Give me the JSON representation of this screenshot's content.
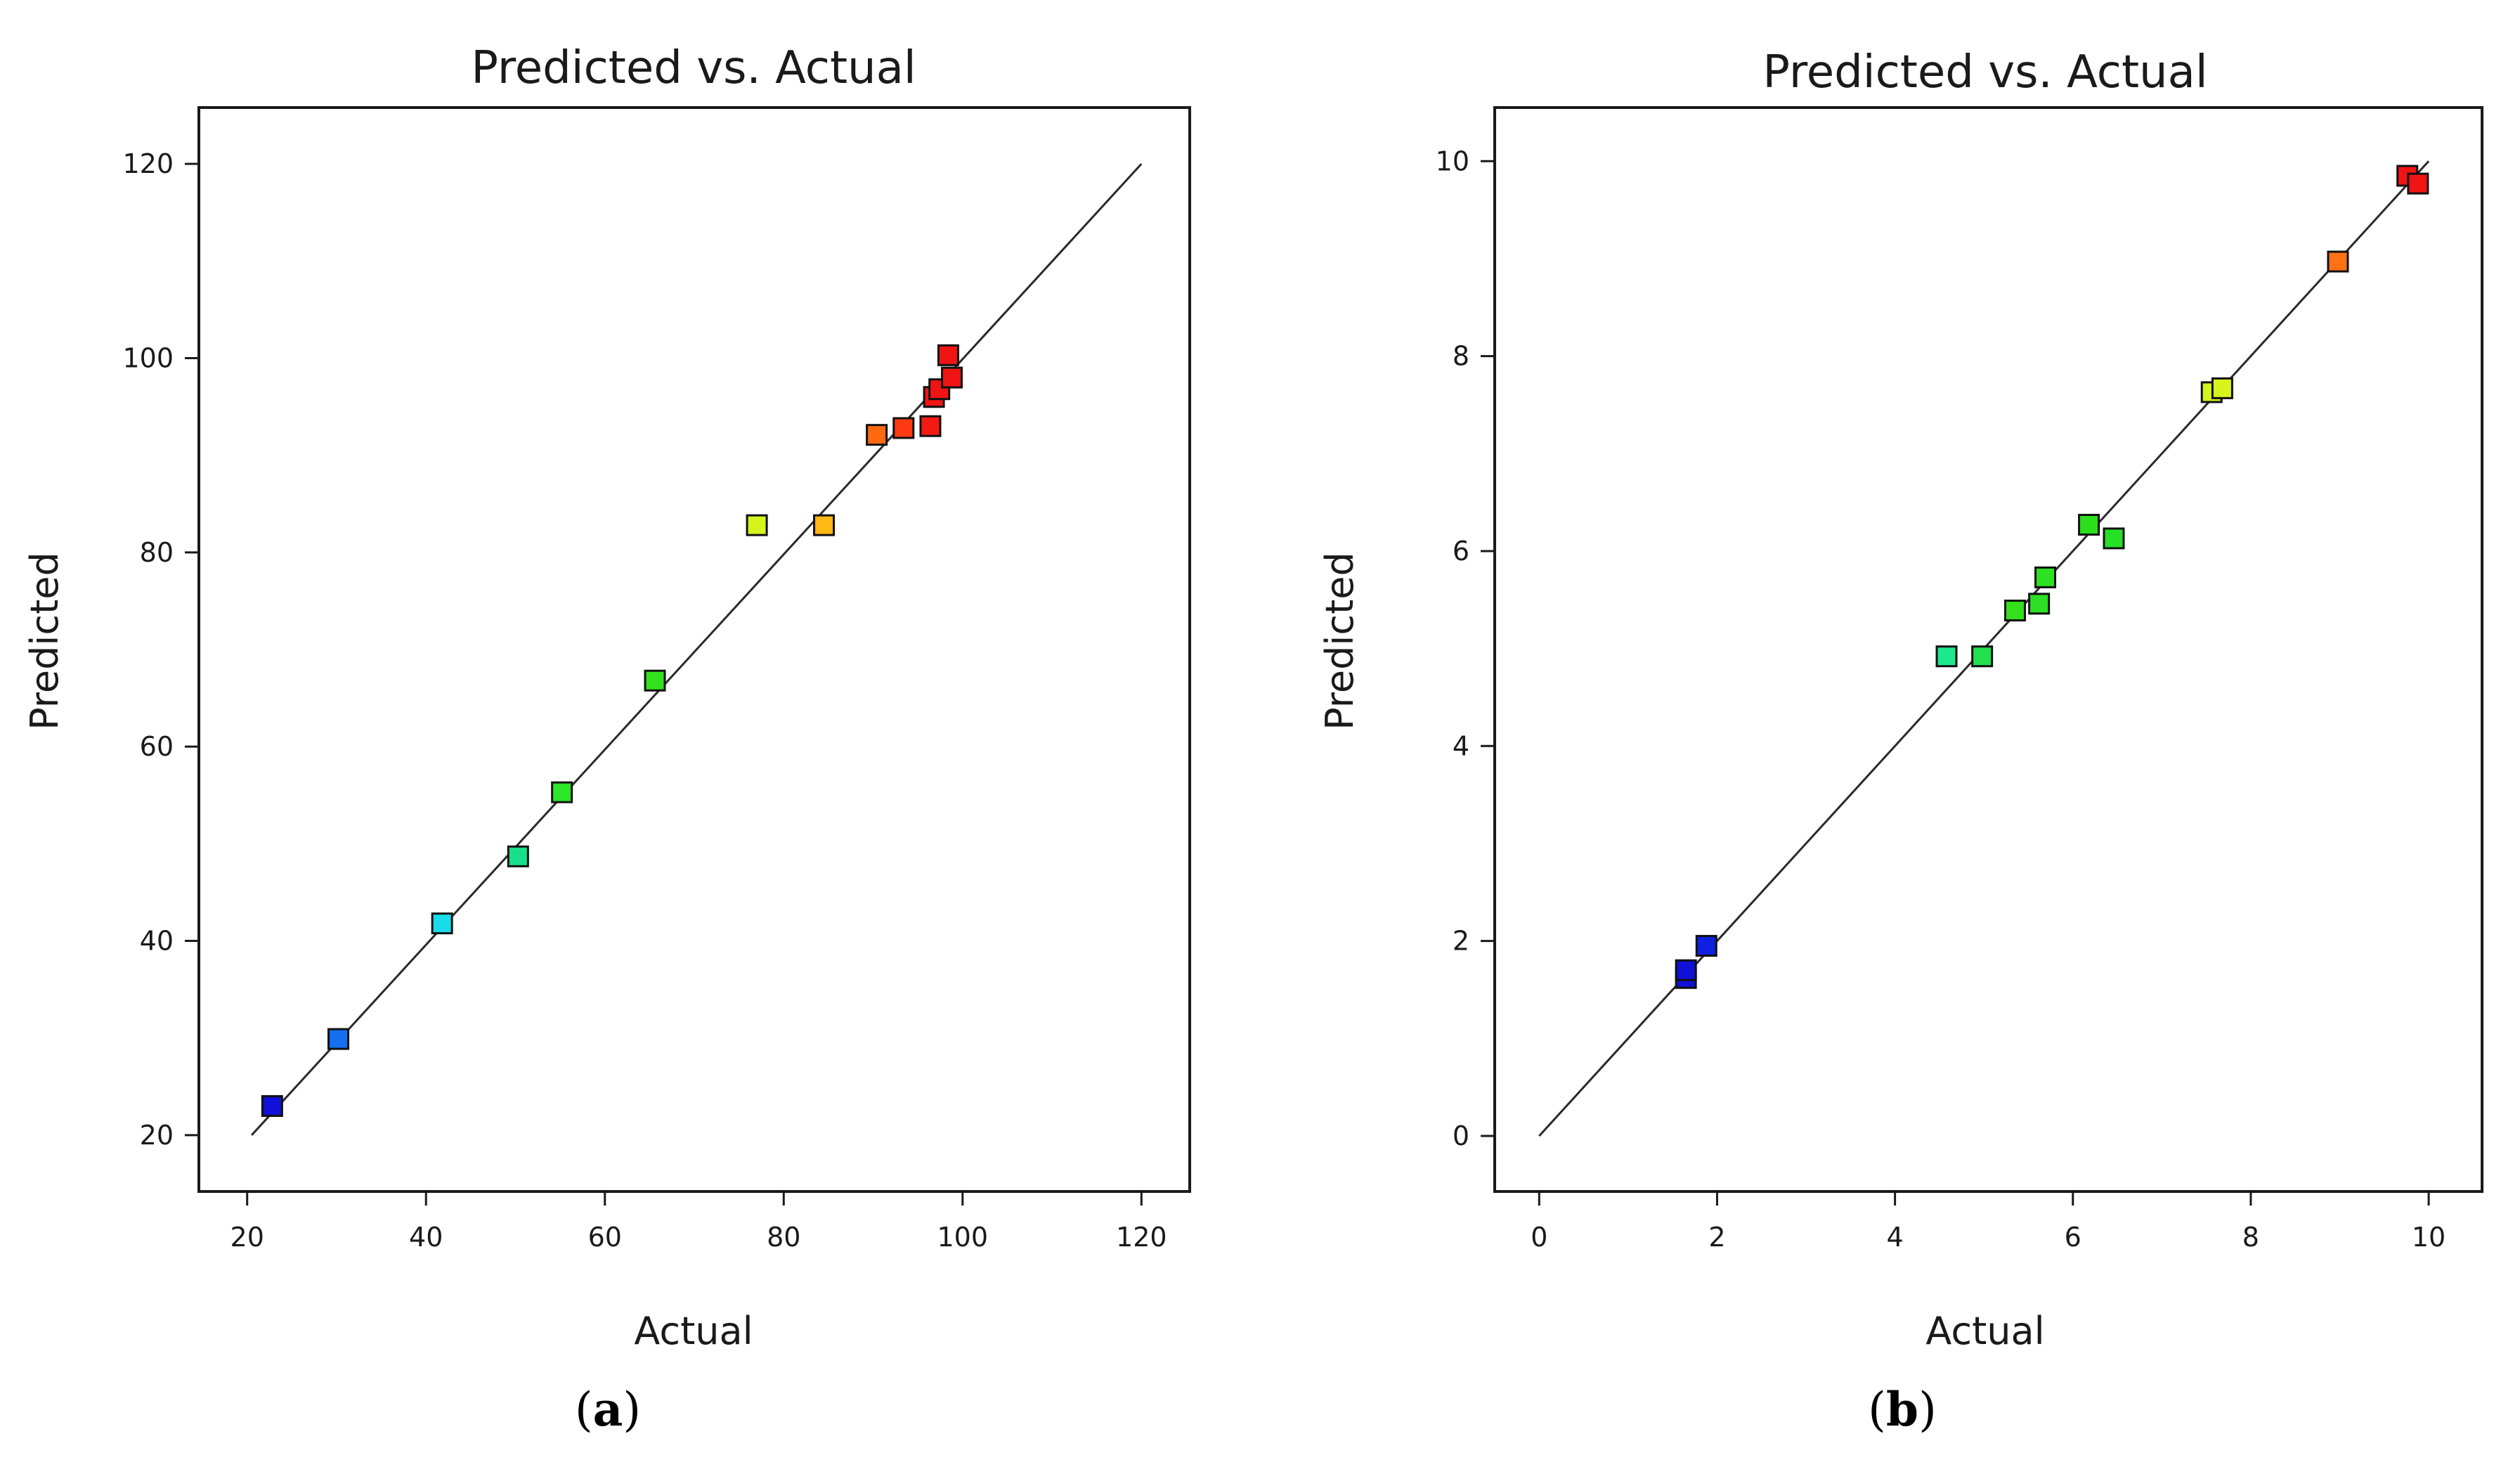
{
  "chart_data": [
    {
      "type": "scatter",
      "title": "Predicted vs. Actual",
      "xlabel": "Actual",
      "ylabel": "Predicted",
      "xlim": [
        14.6,
        125.4
      ],
      "ylim": [
        14.2,
        125.8
      ],
      "xticks": [
        20,
        40,
        60,
        80,
        100,
        120
      ],
      "yticks": [
        20,
        40,
        60,
        80,
        100,
        120
      ],
      "reference_line": {
        "from": [
          20.5,
          20.0
        ],
        "to": [
          120,
          120
        ]
      },
      "caption_letter": "a",
      "points": [
        {
          "x": 22.8,
          "y": 23.0,
          "color": "#1010d8"
        },
        {
          "x": 30.2,
          "y": 29.9,
          "color": "#1470f0"
        },
        {
          "x": 41.8,
          "y": 41.8,
          "color": "#18dcea"
        },
        {
          "x": 50.3,
          "y": 48.7,
          "color": "#18e08a"
        },
        {
          "x": 55.2,
          "y": 55.3,
          "color": "#2ae828"
        },
        {
          "x": 65.6,
          "y": 66.8,
          "color": "#32e01c"
        },
        {
          "x": 77.0,
          "y": 82.8,
          "color": "#d4f41c"
        },
        {
          "x": 84.5,
          "y": 82.8,
          "color": "#ffb814"
        },
        {
          "x": 90.4,
          "y": 92.1,
          "color": "#ff6a10"
        },
        {
          "x": 93.4,
          "y": 92.8,
          "color": "#ff3a10"
        },
        {
          "x": 96.4,
          "y": 93.0,
          "color": "#f41a14"
        },
        {
          "x": 96.8,
          "y": 96.0,
          "color": "#f01414"
        },
        {
          "x": 97.4,
          "y": 96.8,
          "color": "#f01414"
        },
        {
          "x": 98.8,
          "y": 98.0,
          "color": "#f01414"
        },
        {
          "x": 98.4,
          "y": 100.3,
          "color": "#f01414"
        }
      ]
    },
    {
      "type": "scatter",
      "title": "Predicted vs. Actual",
      "xlabel": "Actual",
      "ylabel": "Predicted",
      "xlim": [
        -0.5,
        10.6
      ],
      "ylim": [
        -0.57,
        10.55
      ],
      "xticks": [
        0,
        2,
        4,
        6,
        8,
        10
      ],
      "yticks": [
        0,
        2,
        4,
        6,
        8,
        10
      ],
      "reference_line": {
        "from": [
          0,
          0
        ],
        "to": [
          10,
          10
        ]
      },
      "caption_letter": "b",
      "points": [
        {
          "x": 1.65,
          "y": 1.62,
          "color": "#1010d8"
        },
        {
          "x": 1.65,
          "y": 1.7,
          "color": "#1010d8"
        },
        {
          "x": 1.88,
          "y": 1.95,
          "color": "#1020e0"
        },
        {
          "x": 4.58,
          "y": 4.92,
          "color": "#1ce88c"
        },
        {
          "x": 4.98,
          "y": 4.92,
          "color": "#22e050"
        },
        {
          "x": 5.35,
          "y": 5.39,
          "color": "#34e01c"
        },
        {
          "x": 5.62,
          "y": 5.46,
          "color": "#2ee024"
        },
        {
          "x": 5.69,
          "y": 5.73,
          "color": "#2ee024"
        },
        {
          "x": 6.18,
          "y": 6.27,
          "color": "#2ae01c"
        },
        {
          "x": 6.46,
          "y": 6.13,
          "color": "#26e028"
        },
        {
          "x": 7.56,
          "y": 7.63,
          "color": "#d4f41c"
        },
        {
          "x": 7.68,
          "y": 7.67,
          "color": "#d8f41c"
        },
        {
          "x": 8.98,
          "y": 8.97,
          "color": "#ff7214"
        },
        {
          "x": 9.76,
          "y": 9.85,
          "color": "#f01414"
        },
        {
          "x": 9.88,
          "y": 9.77,
          "color": "#f01414"
        }
      ]
    }
  ]
}
